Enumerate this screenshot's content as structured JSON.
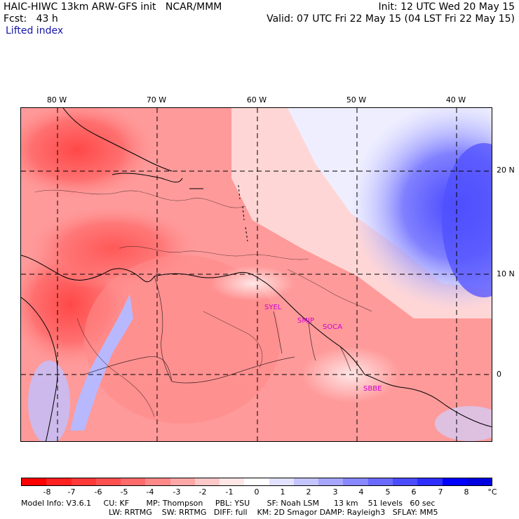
{
  "header": {
    "title": "HAIC-HIWC 13km ARW-GFS init   NCAR/MMM",
    "init": "Init: 12 UTC Wed 20 May 15",
    "fcst": "Fcst:   43 h",
    "valid": "Valid: 07 UTC Fri 22 May 15 (04 LST Fri 22 May 15)",
    "field": "Lifted index"
  },
  "map": {
    "lon_labels": [
      "80 W",
      "70 W",
      "60 W",
      "50 W",
      "40 W"
    ],
    "lat_labels": [
      "20 N",
      "10 N",
      "0"
    ],
    "stations": [
      "SYEL",
      "SMJP",
      "SOCA",
      "SBBE"
    ]
  },
  "colorbar": {
    "ticks": [
      "-8",
      "-7",
      "-6",
      "-5",
      "-4",
      "-3",
      "-2",
      "-1",
      "0",
      "1",
      "2",
      "3",
      "4",
      "5",
      "6",
      "7",
      "8",
      "°C"
    ],
    "colors": [
      "#ff0000",
      "#ff2020",
      "#ff3838",
      "#ff5050",
      "#ff6a6a",
      "#ff8888",
      "#ffa6a6",
      "#ffc8c8",
      "#ffe6e6",
      "#ffffff",
      "#e2e2ff",
      "#c4c4ff",
      "#a6a6ff",
      "#8888ff",
      "#6a6aff",
      "#4c4cff",
      "#2e2eff",
      "#0000ff",
      "#0000e0"
    ]
  },
  "footer": {
    "line1": "Model Info: V3.6.1     CU: KF       MP: Thompson     PBL: YSU       SF: Noah LSM      13 km    51 levels   60 sec",
    "line2": "LW: RRTMG    SW: RRTMG   DIFF: full    KM: 2D Smagor DAMP: Rayleigh3   SFLAY: MM5"
  }
}
